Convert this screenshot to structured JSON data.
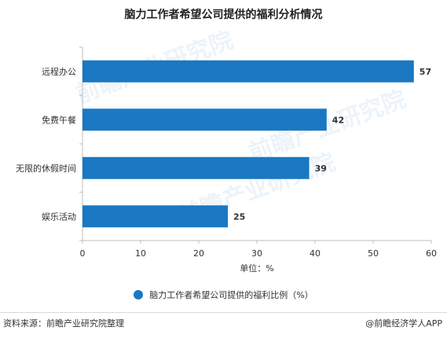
{
  "chart_data": {
    "type": "bar",
    "orientation": "horizontal",
    "title": "脑力工作者希望公司提供的福利分析情况",
    "categories": [
      "远程办公",
      "免费午餐",
      "无限的休假时间",
      "娱乐活动"
    ],
    "values": [
      57,
      42,
      39,
      25
    ],
    "series": [
      {
        "name": "脑力工作者希望公司提供的福利比例（%）",
        "values": [
          57,
          42,
          39,
          25
        ]
      }
    ],
    "xlabel": "单位：%",
    "ylabel": "",
    "xlim": [
      0,
      60
    ],
    "ticks": [
      "0",
      "10",
      "20",
      "30",
      "40",
      "50",
      "60"
    ],
    "grid": false,
    "legend_position": "bottom",
    "bar_color": "#1a78c2"
  },
  "footer": {
    "source": "资料来源：前瞻产业研究院整理",
    "brand": "@前瞻经济学人APP"
  },
  "watermark": {
    "text": "前瞻产业研究院"
  }
}
